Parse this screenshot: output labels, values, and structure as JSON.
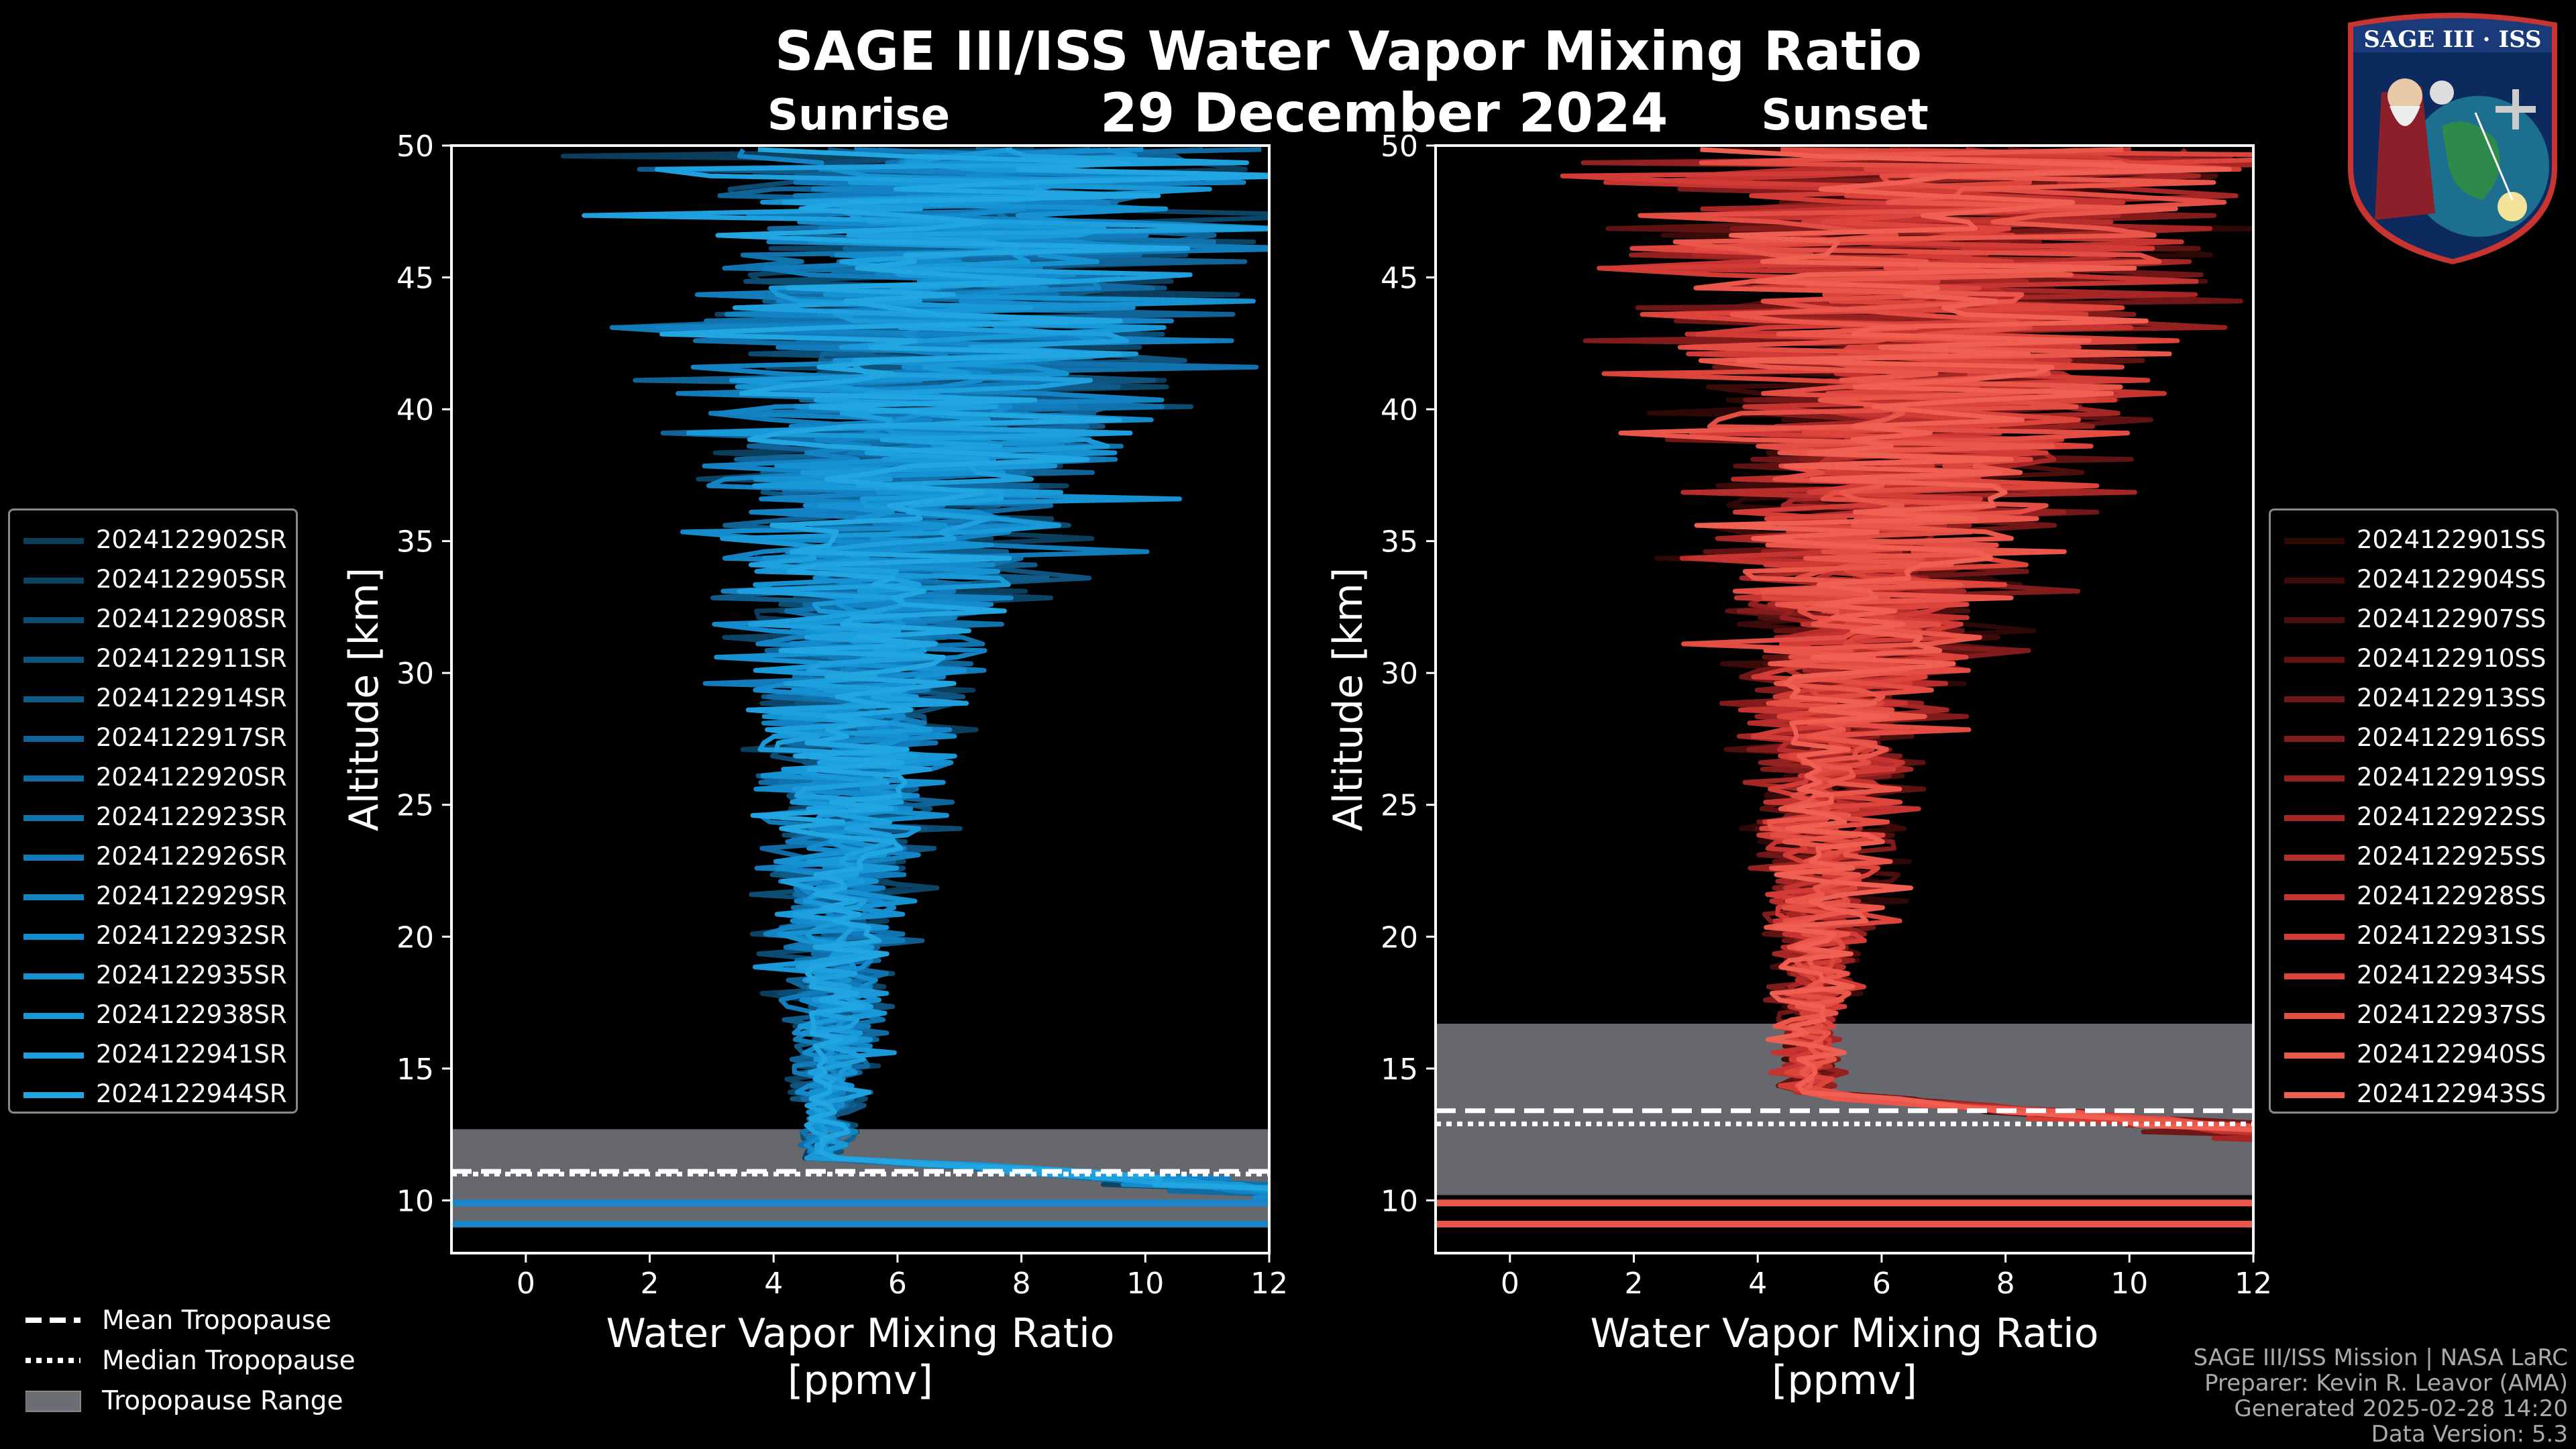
{
  "header": {
    "title": "SAGE III/ISS Water Vapor Mixing Ratio",
    "date": "29 December 2024",
    "left_label": "Sunrise",
    "right_label": "Sunset"
  },
  "logo": {
    "text": "SAGE III · ISS"
  },
  "chart_data": [
    {
      "type": "line",
      "panel": "sunrise",
      "xlabel": "Water Vapor Mixing Ratio\n[ppmv]",
      "ylabel": "Altitude [km]",
      "xlim": [
        -1.2,
        12
      ],
      "ylim": [
        8,
        50
      ],
      "xticks": [
        0,
        2,
        4,
        6,
        8,
        10,
        12
      ],
      "yticks": [
        10,
        15,
        20,
        25,
        30,
        35,
        40,
        45,
        50
      ],
      "tropopause": {
        "mean": 11.1,
        "median": 11.0,
        "range": [
          9.2,
          12.7
        ]
      },
      "series": [
        {
          "name": "2024122902SR",
          "color": "#0b3d5c"
        },
        {
          "name": "2024122905SR",
          "color": "#0c4466"
        },
        {
          "name": "2024122908SR",
          "color": "#0d4c72"
        },
        {
          "name": "2024122911SR",
          "color": "#0e547e"
        },
        {
          "name": "2024122914SR",
          "color": "#0f5b8a"
        },
        {
          "name": "2024122917SR",
          "color": "#106396"
        },
        {
          "name": "2024122920SR",
          "color": "#116ba2"
        },
        {
          "name": "2024122923SR",
          "color": "#1173ae"
        },
        {
          "name": "2024122926SR",
          "color": "#127bba"
        },
        {
          "name": "2024122929SR",
          "color": "#1383c4"
        },
        {
          "name": "2024122932SR",
          "color": "#148bcc"
        },
        {
          "name": "2024122935SR",
          "color": "#1692d2"
        },
        {
          "name": "2024122938SR",
          "color": "#1999d8"
        },
        {
          "name": "2024122941SR",
          "color": "#1da0dd"
        },
        {
          "name": "2024122944SR",
          "color": "#22a6e2"
        }
      ]
    },
    {
      "type": "line",
      "panel": "sunset",
      "xlabel": "Water Vapor Mixing Ratio\n[ppmv]",
      "ylabel": "Altitude [km]",
      "xlim": [
        -1.2,
        12
      ],
      "ylim": [
        8,
        50
      ],
      "xticks": [
        0,
        2,
        4,
        6,
        8,
        10,
        12
      ],
      "yticks": [
        10,
        15,
        20,
        25,
        30,
        35,
        40,
        45,
        50
      ],
      "tropopause": {
        "mean": 13.4,
        "median": 12.9,
        "range": [
          10.2,
          16.7
        ]
      },
      "series": [
        {
          "name": "2024122901SS",
          "color": "#2e0707"
        },
        {
          "name": "2024122904SS",
          "color": "#3d0a0a"
        },
        {
          "name": "2024122907SS",
          "color": "#4d0e0e"
        },
        {
          "name": "2024122910SS",
          "color": "#5e1212"
        },
        {
          "name": "2024122913SS",
          "color": "#701616"
        },
        {
          "name": "2024122916SS",
          "color": "#821b1b"
        },
        {
          "name": "2024122919SS",
          "color": "#942020"
        },
        {
          "name": "2024122922SS",
          "color": "#a62626"
        },
        {
          "name": "2024122925SS",
          "color": "#b72d2b"
        },
        {
          "name": "2024122928SS",
          "color": "#c63431"
        },
        {
          "name": "2024122931SS",
          "color": "#d23b36"
        },
        {
          "name": "2024122934SS",
          "color": "#dc443c"
        },
        {
          "name": "2024122937SS",
          "color": "#e44d43"
        },
        {
          "name": "2024122940SS",
          "color": "#ea564a"
        },
        {
          "name": "2024122943SS",
          "color": "#ef5f52"
        }
      ]
    }
  ],
  "tropopause_legend": [
    {
      "label": "Mean Tropopause",
      "style": "dashed"
    },
    {
      "label": "Median Tropopause",
      "style": "dotted"
    },
    {
      "label": "Tropopause Range",
      "style": "band"
    }
  ],
  "credits": {
    "mission": "SAGE III/ISS Mission | NASA LaRC",
    "preparer": "Preparer: Kevin R. Leavor (AMA)",
    "generated": "Generated 2025-02-28 14:20",
    "version": "Data Version: 5.3"
  },
  "colors": {
    "background": "#000000",
    "sunrise_accent": "#1a9ae0",
    "sunset_accent": "#e8574c",
    "tropopause_band": "#6b6e73"
  }
}
